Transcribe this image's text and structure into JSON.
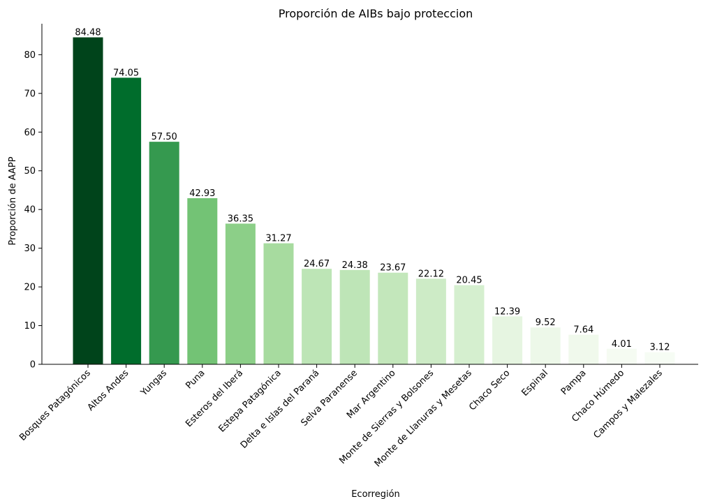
{
  "chart_data": {
    "type": "bar",
    "title": "Proporción de AIBs bajo proteccion",
    "xlabel": "Ecorregión",
    "ylabel": "Proporción de AAPP",
    "ylim": [
      0,
      88
    ],
    "yticks": [
      0,
      10,
      20,
      30,
      40,
      50,
      60,
      70,
      80
    ],
    "grid": false,
    "categories": [
      "Bosques Patagónicos",
      "Altos Andes",
      "Yungas",
      "Puna",
      "Esteros del Iberá",
      "Estepa Patagónica",
      "Delta e Islas del Paraná",
      "Selva Paranense",
      "Mar Argentino",
      "Monte de Sierras y Bolsones",
      "Monte de Llanuras y Mesetas",
      "Chaco Seco",
      "Espinal",
      "Pampa",
      "Chaco Húmedo",
      "Campos y Malezales"
    ],
    "values": [
      84.48,
      74.05,
      57.5,
      42.93,
      36.35,
      31.27,
      24.67,
      24.38,
      23.67,
      22.12,
      20.45,
      12.39,
      9.52,
      7.64,
      4.01,
      3.12
    ],
    "data_labels": [
      "84.48",
      "74.05",
      "57.50",
      "42.93",
      "36.35",
      "31.27",
      "24.67",
      "24.38",
      "23.67",
      "22.12",
      "20.45",
      "12.39",
      "9.52",
      "7.64",
      "4.01",
      "3.12"
    ],
    "colors": [
      "#00441b",
      "#006d2c",
      "#35994f",
      "#73c375",
      "#8ccf88",
      "#a7db9f",
      "#bde5b6",
      "#bee5b7",
      "#c3e7bb",
      "#cdebc6",
      "#d5efcf",
      "#e6f5e1",
      "#edf8e9",
      "#f0f9ec",
      "#f5fbf2",
      "#f6fcf4"
    ]
  }
}
